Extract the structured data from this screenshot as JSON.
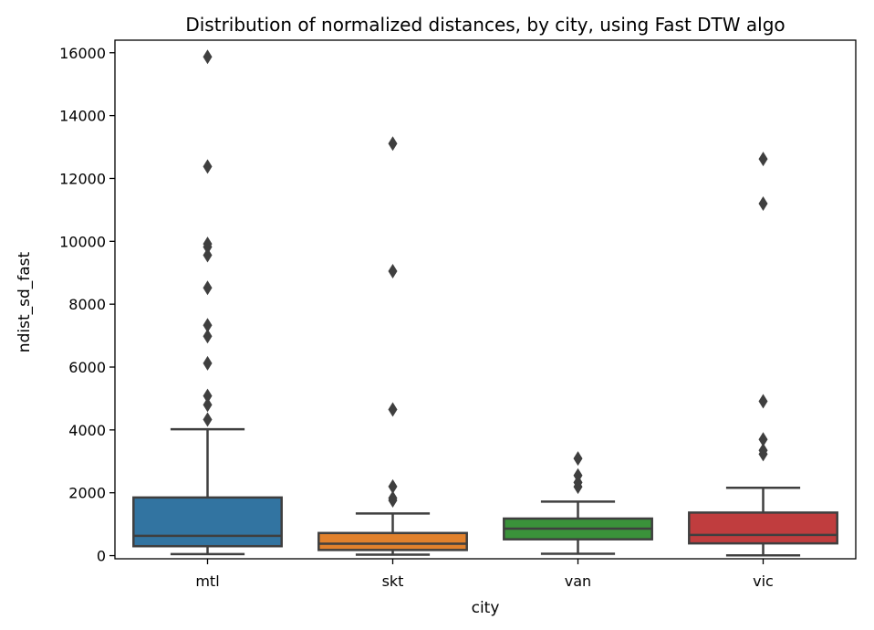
{
  "chart_data": {
    "type": "box",
    "title": "Distribution of normalized distances, by city, using Fast DTW algo",
    "xlabel": "city",
    "ylabel": "ndist_sd_fast",
    "ylim": [
      -100,
      16400
    ],
    "yticks": [
      0,
      2000,
      4000,
      6000,
      8000,
      10000,
      12000,
      14000,
      16000
    ],
    "ytick_labels": [
      "0",
      "2000",
      "4000",
      "6000",
      "8000",
      "10000",
      "12000",
      "14000",
      "16000"
    ],
    "grid": false,
    "categories": [
      "mtl",
      "skt",
      "van",
      "vic"
    ],
    "colors": [
      "#3274a1",
      "#e1812c",
      "#3a923a",
      "#c03d3e"
    ],
    "line_color": "#3f3f3f",
    "boxes": [
      {
        "category": "mtl",
        "whisker_low": 50,
        "q1": 300,
        "median": 630,
        "q3": 1850,
        "whisker_high": 4020,
        "outliers": [
          4330,
          4800,
          5080,
          6120,
          6980,
          7330,
          8520,
          9560,
          9820,
          9920,
          12380,
          15870
        ]
      },
      {
        "category": "skt",
        "whisker_low": 30,
        "q1": 180,
        "median": 380,
        "q3": 720,
        "whisker_high": 1340,
        "outliers": [
          1760,
          1830,
          2200,
          4650,
          9050,
          13110
        ]
      },
      {
        "category": "van",
        "whisker_low": 60,
        "q1": 520,
        "median": 860,
        "q3": 1180,
        "whisker_high": 1720,
        "outliers": [
          2190,
          2330,
          2550,
          3090
        ]
      },
      {
        "category": "vic",
        "whisker_low": 10,
        "q1": 390,
        "median": 660,
        "q3": 1370,
        "whisker_high": 2160,
        "outliers": [
          3230,
          3350,
          3700,
          4910,
          11200,
          12620
        ]
      }
    ]
  }
}
